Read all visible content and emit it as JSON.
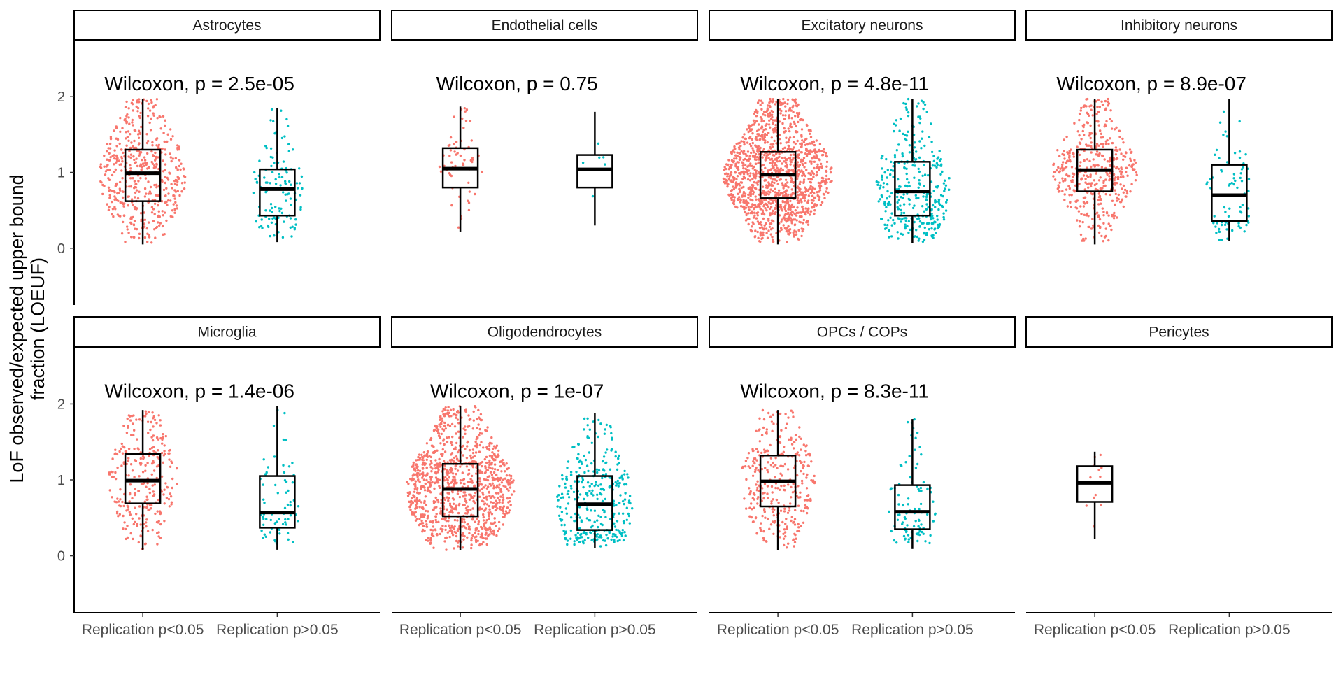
{
  "chart_data": {
    "type": "box",
    "ylabel_lines": [
      "LoF observed/expected upper bound",
      "fraction (LOEUF)"
    ],
    "y_ticks": [
      0,
      1,
      2
    ],
    "ylim": [
      -0.75,
      2.75
    ],
    "categories": [
      "Replication p<0.05",
      "Replication p>0.05"
    ],
    "colors": {
      "Replication p<0.05": "#F8766D",
      "Replication p>0.05": "#00BFC4"
    },
    "panels": [
      {
        "title": "Astrocytes",
        "annotation": "Wilcoxon, p = 2.5e-05",
        "groups": [
          {
            "category": "Replication p<0.05",
            "n": 480,
            "min": 0.05,
            "q1": 0.62,
            "median": 0.99,
            "q3": 1.3,
            "max": 1.97
          },
          {
            "category": "Replication p>0.05",
            "n": 120,
            "min": 0.08,
            "q1": 0.43,
            "median": 0.78,
            "q3": 1.04,
            "max": 1.85
          }
        ]
      },
      {
        "title": "Endothelial cells",
        "annotation": "Wilcoxon, p = 0.75",
        "groups": [
          {
            "category": "Replication p<0.05",
            "n": 60,
            "min": 0.22,
            "q1": 0.8,
            "median": 1.05,
            "q3": 1.32,
            "max": 1.87
          },
          {
            "category": "Replication p>0.05",
            "n": 6,
            "min": 0.3,
            "q1": 0.8,
            "median": 1.04,
            "q3": 1.23,
            "max": 1.8
          }
        ]
      },
      {
        "title": "Excitatory neurons",
        "annotation": "Wilcoxon, p = 4.8e-11",
        "groups": [
          {
            "category": "Replication p<0.05",
            "n": 1300,
            "min": 0.05,
            "q1": 0.66,
            "median": 0.97,
            "q3": 1.27,
            "max": 1.97
          },
          {
            "category": "Replication p>0.05",
            "n": 330,
            "min": 0.07,
            "q1": 0.43,
            "median": 0.75,
            "q3": 1.14,
            "max": 1.97
          }
        ]
      },
      {
        "title": "Inhibitory neurons",
        "annotation": "Wilcoxon, p = 8.9e-07",
        "groups": [
          {
            "category": "Replication p<0.05",
            "n": 460,
            "min": 0.05,
            "q1": 0.75,
            "median": 1.03,
            "q3": 1.3,
            "max": 1.97
          },
          {
            "category": "Replication p>0.05",
            "n": 75,
            "min": 0.1,
            "q1": 0.36,
            "median": 0.7,
            "q3": 1.1,
            "max": 1.97
          }
        ]
      },
      {
        "title": "Microglia",
        "annotation": "Wilcoxon, p = 1.4e-06",
        "groups": [
          {
            "category": "Replication p<0.05",
            "n": 270,
            "min": 0.08,
            "q1": 0.69,
            "median": 0.99,
            "q3": 1.34,
            "max": 1.92
          },
          {
            "category": "Replication p>0.05",
            "n": 70,
            "min": 0.08,
            "q1": 0.37,
            "median": 0.57,
            "q3": 1.05,
            "max": 1.97
          }
        ]
      },
      {
        "title": "Oligodendrocytes",
        "annotation": "Wilcoxon, p = 1e-07",
        "groups": [
          {
            "category": "Replication p<0.05",
            "n": 1050,
            "min": 0.07,
            "q1": 0.52,
            "median": 0.88,
            "q3": 1.21,
            "max": 1.97
          },
          {
            "category": "Replication p>0.05",
            "n": 340,
            "min": 0.1,
            "q1": 0.34,
            "median": 0.68,
            "q3": 1.05,
            "max": 1.88
          }
        ]
      },
      {
        "title": "OPCs / COPs",
        "annotation": "Wilcoxon, p = 8.3e-11",
        "groups": [
          {
            "category": "Replication p<0.05",
            "n": 330,
            "min": 0.07,
            "q1": 0.65,
            "median": 0.98,
            "q3": 1.32,
            "max": 1.92
          },
          {
            "category": "Replication p>0.05",
            "n": 95,
            "min": 0.09,
            "q1": 0.35,
            "median": 0.58,
            "q3": 0.93,
            "max": 1.8
          }
        ]
      },
      {
        "title": "Pericytes",
        "annotation": "",
        "groups": [
          {
            "category": "Replication p<0.05",
            "n": 12,
            "min": 0.22,
            "q1": 0.71,
            "median": 0.96,
            "q3": 1.18,
            "max": 1.37
          }
        ]
      }
    ]
  }
}
